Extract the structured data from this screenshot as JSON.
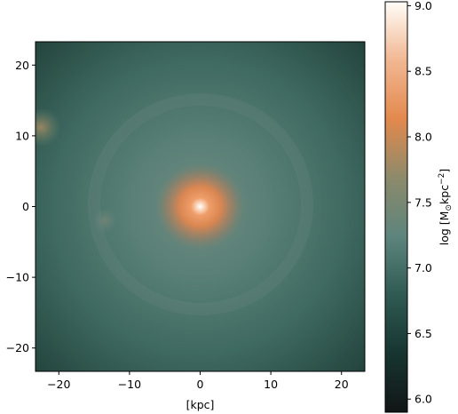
{
  "chart_data": {
    "type": "heatmap",
    "xlabel": "[kpc]",
    "ylabel": "",
    "xlim": [
      -23.3,
      23.3
    ],
    "ylim": [
      -23.3,
      23.3
    ],
    "x_ticks": [
      -20,
      -10,
      0,
      10,
      20
    ],
    "y_ticks": [
      -20,
      -10,
      0,
      10,
      20
    ],
    "x_tick_labels": [
      "−20",
      "−10",
      "0",
      "10",
      "20"
    ],
    "y_tick_labels": [
      "−20",
      "−10",
      "0",
      "10",
      "20"
    ],
    "colorbar": {
      "label_prefix": "log [M",
      "label_sun": "⊙",
      "label_mid": "kpc",
      "label_exp": "−2",
      "label_suffix": "]",
      "range": [
        5.9,
        9.03
      ],
      "ticks": [
        6.0,
        6.5,
        7.0,
        7.5,
        8.0,
        8.5,
        9.0
      ],
      "tick_labels": [
        "6.0",
        "6.5",
        "7.0",
        "7.5",
        "8.0",
        "8.5",
        "9.0"
      ],
      "colors": [
        "#111616",
        "#173530",
        "#2f5a52",
        "#5d857d",
        "#8c8a6a",
        "#e3894d",
        "#f1b792",
        "#fffdf8"
      ]
    },
    "features": [
      {
        "kind": "central-peak",
        "x": 0,
        "y": 0,
        "log_value": 9.0
      },
      {
        "kind": "satellite",
        "x": -22.5,
        "y": 11.2,
        "log_value": 7.7
      },
      {
        "kind": "satellite",
        "x": -13.5,
        "y": -2.0,
        "log_value": 7.3
      }
    ],
    "grid": false,
    "colormap": "dark-teal to orange to white"
  }
}
